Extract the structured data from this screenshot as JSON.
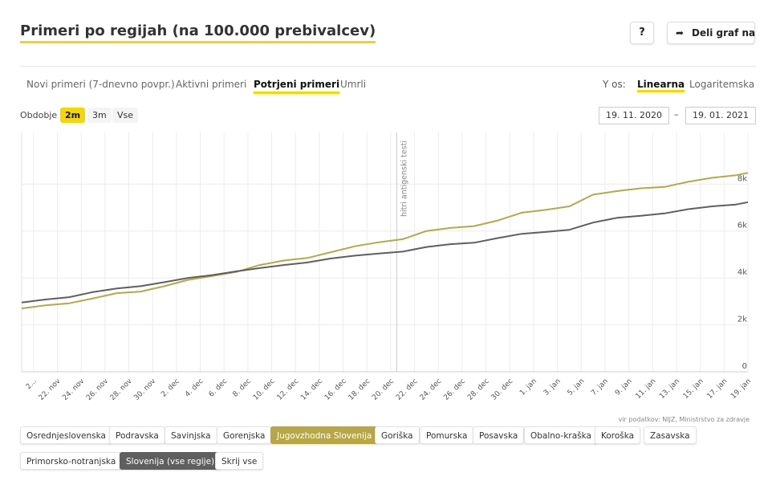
{
  "header": {
    "title": "Primeri po regijah (na 100.000 prebivalcev)",
    "help_label": "?",
    "share_label": "Deli graf na"
  },
  "tabs": [
    {
      "label": "Novi primeri (7-dnevno povpr.)",
      "active": false
    },
    {
      "label": "Aktivni primeri",
      "active": false
    },
    {
      "label": "Potrjeni primeri",
      "active": true
    },
    {
      "label": "Umrli",
      "active": false
    }
  ],
  "y_axis_control": {
    "label": "Y os:",
    "options": [
      {
        "label": "Linearna",
        "active": true
      },
      {
        "label": "Logaritemska",
        "active": false
      }
    ]
  },
  "period": {
    "label": "Obdobje",
    "options": [
      {
        "label": "2m",
        "active": true
      },
      {
        "label": "3m",
        "active": false
      },
      {
        "label": "Vse",
        "active": false
      }
    ]
  },
  "date_range": {
    "from": "19. 11. 2020",
    "separator": "–",
    "to": "19. 01. 2021"
  },
  "source_note": "vir podatkov: NIJZ, Ministrstvo za zdravje",
  "regions": [
    {
      "label": "Osrednjeslovenska",
      "state": "none"
    },
    {
      "label": "Podravska",
      "state": "none"
    },
    {
      "label": "Savinjska",
      "state": "none"
    },
    {
      "label": "Gorenjska",
      "state": "none"
    },
    {
      "label": "Jugovzhodna Slovenija",
      "state": "selected",
      "color": "#b7a845"
    },
    {
      "label": "Goriška",
      "state": "none"
    },
    {
      "label": "Pomurska",
      "state": "none"
    },
    {
      "label": "Posavska",
      "state": "none"
    },
    {
      "label": "Obalno-kraška",
      "state": "none"
    },
    {
      "label": "Koroška",
      "state": "none"
    },
    {
      "label": "Zasavska",
      "state": "none"
    },
    {
      "label": "Primorsko-notranjska",
      "state": "none"
    },
    {
      "label": "Slovenija (vse regije)",
      "state": "selected",
      "color": "#5f5f5f"
    },
    {
      "label": "Skrij vse",
      "state": "none"
    }
  ],
  "chart_data": {
    "type": "line",
    "x_tick_labels": [
      "2...",
      "22. nov",
      "24. nov",
      "26. nov",
      "28. nov",
      "30. nov",
      "2. dec",
      "4. dec",
      "6. dec",
      "8. dec",
      "10. dec",
      "12. dec",
      "14. dec",
      "16. dec",
      "18. dec",
      "20. dec",
      "22. dec",
      "24. dec",
      "26. dec",
      "28. dec",
      "30. dec",
      "1. jan",
      "3. jan",
      "5. jan",
      "7. jan",
      "9. jan",
      "11. jan",
      "13. jan",
      "15. jan",
      "17. jan",
      "19. jan"
    ],
    "y_tick_labels": [
      "0",
      "2k",
      "4k",
      "6k",
      "8k"
    ],
    "ylim": [
      0,
      10200
    ],
    "x_start_day": 20,
    "x_end_day": 81,
    "grid": true,
    "annotation": {
      "label": "hitri antigenski testi",
      "day": 51.5
    },
    "series": [
      {
        "name": "Jugovzhodna Slovenija",
        "color": "#b7a845",
        "days": [
          20,
          22,
          24,
          26,
          28,
          30,
          32,
          34,
          36,
          38,
          40,
          42,
          44,
          46,
          48,
          50,
          52,
          54,
          56,
          58,
          60,
          62,
          64,
          66,
          68,
          70,
          72,
          74,
          76,
          78,
          80,
          81
        ],
        "values": [
          2700,
          2830,
          2920,
          3130,
          3350,
          3420,
          3650,
          3920,
          4080,
          4250,
          4550,
          4740,
          4850,
          5100,
          5350,
          5520,
          5650,
          6000,
          6130,
          6210,
          6450,
          6780,
          6900,
          7050,
          7550,
          7700,
          7820,
          7880,
          8100,
          8270,
          8380,
          8480
        ]
      },
      {
        "name": "Slovenija (vse regije)",
        "color": "#5f5f5f",
        "days": [
          20,
          22,
          24,
          26,
          28,
          30,
          32,
          34,
          36,
          38,
          40,
          42,
          44,
          46,
          48,
          50,
          52,
          54,
          56,
          58,
          60,
          62,
          64,
          66,
          68,
          70,
          72,
          74,
          76,
          78,
          80,
          81
        ],
        "values": [
          2950,
          3080,
          3180,
          3400,
          3550,
          3650,
          3820,
          4000,
          4120,
          4280,
          4420,
          4550,
          4660,
          4830,
          4950,
          5040,
          5120,
          5320,
          5440,
          5500,
          5700,
          5880,
          5960,
          6050,
          6360,
          6560,
          6650,
          6750,
          6930,
          7050,
          7130,
          7230
        ]
      }
    ]
  }
}
